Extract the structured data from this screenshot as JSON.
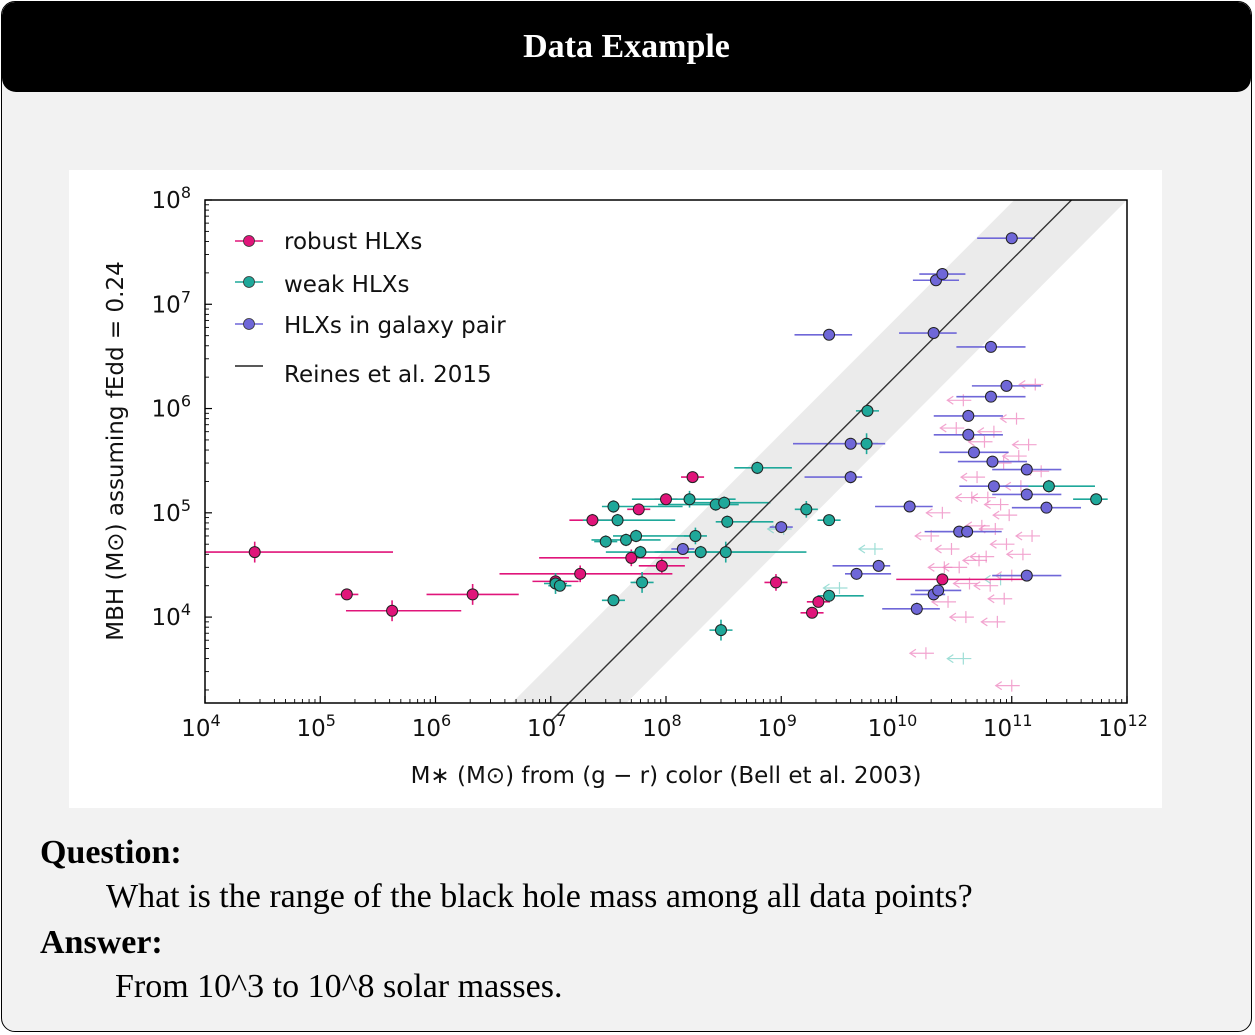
{
  "header": {
    "title": "Data Example"
  },
  "qa": {
    "question_label": "Question:",
    "question_text": "What is the range of the black hole mass among all data points?",
    "answer_label": "Answer:",
    "answer_text": "From 10^3 to 10^8 solar masses."
  },
  "chart_data": {
    "type": "scatter",
    "xscale": "log",
    "yscale": "log",
    "xlim": [
      10000,
      1000000000000
    ],
    "ylim": [
      1500,
      100000000
    ],
    "xlabel": "M∗ (M⊙) from (g − r) color (Bell et al. 2003)",
    "ylabel": "MBH (M⊙) assuming fEdd = 0.24",
    "xticks": [
      {
        "base": "10",
        "exp": "4",
        "value": 10000
      },
      {
        "base": "10",
        "exp": "5",
        "value": 100000
      },
      {
        "base": "10",
        "exp": "6",
        "value": 1000000
      },
      {
        "base": "10",
        "exp": "7",
        "value": 10000000
      },
      {
        "base": "10",
        "exp": "8",
        "value": 100000000
      },
      {
        "base": "10",
        "exp": "9",
        "value": 1000000000
      },
      {
        "base": "10",
        "exp": "10",
        "value": 10000000000
      },
      {
        "base": "10",
        "exp": "11",
        "value": 100000000000
      },
      {
        "base": "10",
        "exp": "12",
        "value": 1000000000000
      }
    ],
    "yticks": [
      {
        "base": "10",
        "exp": "4",
        "value": 10000
      },
      {
        "base": "10",
        "exp": "5",
        "value": 100000
      },
      {
        "base": "10",
        "exp": "6",
        "value": 1000000
      },
      {
        "base": "10",
        "exp": "7",
        "value": 10000000
      },
      {
        "base": "10",
        "exp": "8",
        "value": 100000000
      }
    ],
    "legend": {
      "position": "top-left",
      "entries": [
        {
          "label": "robust HLXs",
          "color": "#e0157a"
        },
        {
          "label": "weak HLXs",
          "color": "#1fa89a"
        },
        {
          "label": "HLXs in galaxy pair",
          "color": "#6f67d8"
        },
        {
          "label": "Reines et al. 2015",
          "color": "#222222"
        }
      ]
    },
    "relation": {
      "name": "Reines et al. 2015",
      "x": [
        10000000,
        330000000000
      ],
      "y": [
        1000,
        100000000
      ],
      "band_dex": 0.55
    },
    "series": [
      {
        "name": "robust HLXs",
        "color": "#e0157a",
        "points": [
          {
            "x": 27000,
            "y": 42000,
            "xerr": [
              0.7,
              1.2
            ],
            "yerr": 0.1
          },
          {
            "x": 170000,
            "y": 16500,
            "xerr": [
              0.1,
              0.1
            ],
            "yerr": 0.03
          },
          {
            "x": 420000,
            "y": 11500,
            "xerr": [
              0.4,
              0.6
            ],
            "yerr": 0.1
          },
          {
            "x": 2100000,
            "y": 16500,
            "xerr": [
              0.4,
              0.4
            ],
            "yerr": 0.1
          },
          {
            "x": 11000000,
            "y": 22000,
            "xerr": [
              0.2,
              0.2
            ],
            "yerr": 0.06
          },
          {
            "x": 18000000,
            "y": 26000,
            "xerr": [
              0.7,
              0.8
            ],
            "yerr": 0.08
          },
          {
            "x": 23000000,
            "y": 85000,
            "xerr": [
              0.2,
              0.2
            ],
            "yerr": 0.06
          },
          {
            "x": 50000000,
            "y": 37000,
            "xerr": [
              0.8,
              0.5
            ],
            "yerr": 0.08
          },
          {
            "x": 58000000,
            "y": 108000,
            "xerr": [
              0.1,
              0.1
            ],
            "yerr": 0.03
          },
          {
            "x": 92000000,
            "y": 31000,
            "xerr": [
              0.2,
              0.2
            ],
            "yerr": 0.08
          },
          {
            "x": 100000000,
            "y": 135000,
            "xerr": [
              0.1,
              0.1
            ],
            "yerr": 0.03
          },
          {
            "x": 170000000,
            "y": 220000,
            "xerr": [
              0.1,
              0.1
            ],
            "yerr": 0.03
          },
          {
            "x": 900000000,
            "y": 21500,
            "xerr": [
              0.1,
              0.1
            ],
            "yerr": 0.08
          },
          {
            "x": 1850000000,
            "y": 11000,
            "xerr": [
              0.1,
              0.1
            ],
            "yerr": 0.03
          },
          {
            "x": 2100000000,
            "y": 14000,
            "xerr": [
              0.1,
              0.1
            ],
            "yerr": 0.03
          },
          {
            "x": 25000000000,
            "y": 23000,
            "xerr": [
              0.4,
              0.7
            ],
            "yerr": 0.03
          }
        ]
      },
      {
        "name": "weak HLXs",
        "color": "#1fa89a",
        "points": [
          {
            "x": 11000000,
            "y": 21000,
            "xerr": [
              0.1,
              0.1
            ],
            "yerr": 0.1
          },
          {
            "x": 12000000,
            "y": 20000,
            "xerr": [
              0.1,
              0.1
            ],
            "yerr": 0.03
          },
          {
            "x": 30000000,
            "y": 53000,
            "xerr": [
              0.1,
              0.1
            ],
            "yerr": 0.06
          },
          {
            "x": 35000000,
            "y": 115000,
            "xerr": [
              0.1,
              0.6
            ],
            "yerr": 0.06
          },
          {
            "x": 35000000,
            "y": 14500,
            "xerr": [
              0.1,
              0.1
            ],
            "yerr": 0.03
          },
          {
            "x": 38000000,
            "y": 85000,
            "xerr": [
              0.3,
              0.5
            ],
            "yerr": 0.06
          },
          {
            "x": 45000000,
            "y": 55000,
            "xerr": [
              0.3,
              0.3
            ],
            "yerr": 0.06
          },
          {
            "x": 55000000,
            "y": 60000,
            "xerr": [
              0.2,
              0.5
            ],
            "yerr": 0.06
          },
          {
            "x": 60000000,
            "y": 42000,
            "xerr": [
              0.3,
              0.6
            ],
            "yerr": 0.06
          },
          {
            "x": 62000000,
            "y": 21500,
            "xerr": [
              0.1,
              0.1
            ],
            "yerr": 0.1
          },
          {
            "x": 160000000,
            "y": 135000,
            "xerr": [
              0.5,
              0.4
            ],
            "yerr": 0.08
          },
          {
            "x": 180000000,
            "y": 60000,
            "xerr": [
              0.1,
              0.1
            ],
            "yerr": 0.08
          },
          {
            "x": 200000000,
            "y": 42000,
            "xerr": [
              0.4,
              0.6
            ],
            "yerr": 0.06
          },
          {
            "x": 270000000,
            "y": 120000,
            "xerr": [
              0.5,
              0.2
            ],
            "yerr": 0.06
          },
          {
            "x": 300000000,
            "y": 7500,
            "xerr": [
              0.1,
              0.1
            ],
            "yerr": 0.1
          },
          {
            "x": 320000000,
            "y": 125000,
            "xerr": [
              0.3,
              0.4
            ],
            "yerr": 0.06
          },
          {
            "x": 330000000,
            "y": 42000,
            "xerr": [
              0.6,
              0.7
            ],
            "yerr": 0.1
          },
          {
            "x": 340000000,
            "y": 82000,
            "xerr": [
              0.1,
              0.4
            ],
            "yerr": 0.06
          },
          {
            "x": 620000000,
            "y": 270000,
            "xerr": [
              0.2,
              0.3
            ],
            "yerr": 0.06
          },
          {
            "x": 1650000000,
            "y": 108000,
            "xerr": [
              0.1,
              0.1
            ],
            "yerr": 0.08
          },
          {
            "x": 2600000000,
            "y": 85000,
            "xerr": [
              0.1,
              0.1
            ],
            "yerr": 0.03
          },
          {
            "x": 2600000000,
            "y": 16000,
            "xerr": [
              0.1,
              0.3
            ],
            "yerr": 0.03
          },
          {
            "x": 5500000000,
            "y": 460000,
            "xerr": [
              0.1,
              0.1
            ],
            "yerr": 0.1
          },
          {
            "x": 5600000000,
            "y": 950000,
            "xerr": [
              0.1,
              0.1
            ],
            "yerr": 0.03
          },
          {
            "x": 210000000000,
            "y": 180000,
            "xerr": [
              0.4,
              0.4
            ],
            "yerr": 0.06
          },
          {
            "x": 540000000000,
            "y": 135000,
            "xerr": [
              0.2,
              0.1
            ],
            "yerr": 0.03
          }
        ]
      },
      {
        "name": "HLXs in galaxy pair",
        "color": "#6f67d8",
        "points": [
          {
            "x": 140000000,
            "y": 45000,
            "xerr": [
              0.1,
              0.1
            ],
            "yerr": 0.03
          },
          {
            "x": 1000000000,
            "y": 73000,
            "xerr": [
              0.1,
              0.1
            ],
            "yerr": 0.03
          },
          {
            "x": 2600000000,
            "y": 5100000,
            "xerr": [
              0.3,
              0.2
            ],
            "yerr": 0.03
          },
          {
            "x": 4000000000,
            "y": 460000,
            "xerr": [
              0.5,
              0.3
            ],
            "yerr": 0.03
          },
          {
            "x": 4000000000,
            "y": 220000,
            "xerr": [
              0.4,
              0.1
            ],
            "yerr": 0.06
          },
          {
            "x": 4500000000,
            "y": 26000,
            "xerr": [
              0.1,
              0.3
            ],
            "yerr": 0.03
          },
          {
            "x": 7000000000,
            "y": 31000,
            "xerr": [
              0.4,
              0.1
            ],
            "yerr": 0.03
          },
          {
            "x": 13000000000,
            "y": 115000,
            "xerr": [
              0.3,
              0.2
            ],
            "yerr": 0.03
          },
          {
            "x": 15000000000,
            "y": 12000,
            "xerr": [
              0.3,
              0.2
            ],
            "yerr": 0.06
          },
          {
            "x": 21000000000,
            "y": 16500,
            "xerr": [
              0.2,
              0.1
            ],
            "yerr": 0.03
          },
          {
            "x": 21000000000,
            "y": 5300000,
            "xerr": [
              0.3,
              0.2
            ],
            "yerr": 0.03
          },
          {
            "x": 22000000000,
            "y": 17000000,
            "xerr": [
              0.2,
              0.2
            ],
            "yerr": 0.03
          },
          {
            "x": 23000000000,
            "y": 18000,
            "xerr": [
              0.2,
              0.2
            ],
            "yerr": 0.03
          },
          {
            "x": 25000000000,
            "y": 19500000,
            "xerr": [
              0.2,
              0.2
            ],
            "yerr": 0.03
          },
          {
            "x": 35000000000,
            "y": 66000,
            "xerr": [
              0.3,
              0.3
            ],
            "yerr": 0.03
          },
          {
            "x": 41000000000,
            "y": 66000,
            "xerr": [
              0.3,
              0.3
            ],
            "yerr": 0.03
          },
          {
            "x": 42000000000,
            "y": 850000,
            "xerr": [
              0.3,
              0.3
            ],
            "yerr": 0.03
          },
          {
            "x": 42000000000,
            "y": 560000,
            "xerr": [
              0.3,
              0.3
            ],
            "yerr": 0.03
          },
          {
            "x": 47000000000,
            "y": 380000,
            "xerr": [
              0.3,
              0.3
            ],
            "yerr": 0.03
          },
          {
            "x": 66000000000,
            "y": 3900000,
            "xerr": [
              0.3,
              0.3
            ],
            "yerr": 0.03
          },
          {
            "x": 66000000000,
            "y": 1300000,
            "xerr": [
              0.3,
              0.3
            ],
            "yerr": 0.03
          },
          {
            "x": 68000000000,
            "y": 310000,
            "xerr": [
              0.3,
              0.3
            ],
            "yerr": 0.03
          },
          {
            "x": 70000000000,
            "y": 180000,
            "xerr": [
              0.3,
              0.3
            ],
            "yerr": 0.03
          },
          {
            "x": 90000000000,
            "y": 1650000,
            "xerr": [
              0.3,
              0.3
            ],
            "yerr": 0.03
          },
          {
            "x": 100000000000,
            "y": 43000000,
            "xerr": [
              0.3,
              0.2
            ],
            "yerr": 0.03
          },
          {
            "x": 135000000000,
            "y": 260000,
            "xerr": [
              0.3,
              0.3
            ],
            "yerr": 0.03
          },
          {
            "x": 135000000000,
            "y": 150000,
            "xerr": [
              0.3,
              0.3
            ],
            "yerr": 0.03
          },
          {
            "x": 135000000000,
            "y": 25000,
            "xerr": [
              0.3,
              0.3
            ],
            "yerr": 0.03
          },
          {
            "x": 200000000000,
            "y": 112000,
            "xerr": [
              0.3,
              0.3
            ],
            "yerr": 0.03
          }
        ]
      }
    ],
    "upper_limits": [
      {
        "x": 20000000000,
        "y": 60000
      },
      {
        "x": 25000000000,
        "y": 100000
      },
      {
        "x": 30000000000,
        "y": 45000
      },
      {
        "x": 35000000000,
        "y": 30000
      },
      {
        "x": 28000000000,
        "y": 14000
      },
      {
        "x": 40000000000,
        "y": 10000
      },
      {
        "x": 45000000000,
        "y": 140000
      },
      {
        "x": 50000000000,
        "y": 220000
      },
      {
        "x": 55000000000,
        "y": 75000
      },
      {
        "x": 60000000000,
        "y": 38000
      },
      {
        "x": 65000000000,
        "y": 20000
      },
      {
        "x": 70000000000,
        "y": 600000
      },
      {
        "x": 75000000000,
        "y": 9000
      },
      {
        "x": 80000000000,
        "y": 120000
      },
      {
        "x": 85000000000,
        "y": 300000
      },
      {
        "x": 90000000000,
        "y": 50000
      },
      {
        "x": 100000000000,
        "y": 25000
      },
      {
        "x": 110000000000,
        "y": 800000
      },
      {
        "x": 120000000000,
        "y": 180000
      },
      {
        "x": 140000000000,
        "y": 450000
      },
      {
        "x": 150000000000,
        "y": 60000
      },
      {
        "x": 160000000000,
        "y": 1700000
      },
      {
        "x": 180000000000,
        "y": 250000
      },
      {
        "x": 18000000000,
        "y": 4500
      },
      {
        "x": 100000000000,
        "y": 2200
      },
      {
        "x": 38000000000,
        "y": 1200000
      },
      {
        "x": 33000000000,
        "y": 650000
      },
      {
        "x": 52000000000,
        "y": 35000
      },
      {
        "x": 62000000000,
        "y": 140000
      },
      {
        "x": 26000000000,
        "y": 30000
      },
      {
        "x": 43000000000,
        "y": 21000
      },
      {
        "x": 86000000000,
        "y": 15000
      },
      {
        "x": 125000000000,
        "y": 40000
      },
      {
        "x": 95000000000,
        "y": 95000
      },
      {
        "x": 72000000000,
        "y": 70000
      },
      {
        "x": 115000000000,
        "y": 350000
      },
      {
        "x": 58000000000,
        "y": 480000
      }
    ],
    "weak_upper_limits": [
      {
        "x": 6500000000,
        "y": 45000
      },
      {
        "x": 3200000000,
        "y": 19000
      },
      {
        "x": 38000000000,
        "y": 4000
      },
      {
        "x": 80000000000,
        "y": 23000
      },
      {
        "x": 1050000000,
        "y": 70000
      }
    ]
  }
}
